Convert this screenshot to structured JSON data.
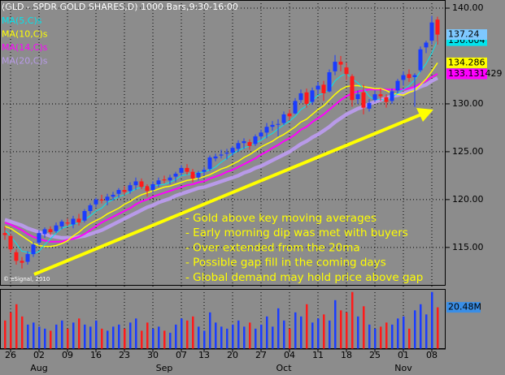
{
  "chart_data": {
    "type": "candlestick",
    "title": "(GLD - SPDR GOLD SHARES,D) 1000 Bars,9:30-16:00",
    "copyright": "© eSignal, 2010",
    "categories": [
      null,
      "26",
      null,
      null,
      null,
      null,
      "02",
      null,
      null,
      null,
      null,
      "09",
      null,
      null,
      null,
      null,
      "16",
      null,
      null,
      null,
      null,
      "23",
      null,
      null,
      null,
      null,
      "30",
      null,
      null,
      null,
      null,
      "07",
      null,
      null,
      null,
      "13",
      null,
      null,
      null,
      null,
      "20",
      null,
      null,
      null,
      null,
      "27",
      null,
      null,
      null,
      null,
      "04",
      null,
      null,
      null,
      null,
      "11",
      null,
      null,
      null,
      null,
      "18",
      null,
      null,
      null,
      null,
      "25",
      null,
      null,
      null,
      null,
      "01",
      null,
      null,
      null,
      null,
      "08",
      null
    ],
    "month_categories": [
      null,
      null,
      null,
      null,
      null,
      null,
      "Aug",
      null,
      null,
      null,
      null,
      null,
      null,
      null,
      null,
      null,
      null,
      null,
      null,
      null,
      null,
      null,
      null,
      null,
      null,
      null,
      null,
      null,
      "Sep",
      null,
      null,
      null,
      null,
      null,
      null,
      null,
      null,
      null,
      null,
      null,
      null,
      null,
      null,
      null,
      null,
      null,
      null,
      null,
      null,
      "Oct",
      null,
      null,
      null,
      null,
      null,
      null,
      null,
      null,
      null,
      null,
      null,
      null,
      null,
      null,
      null,
      null,
      null,
      null,
      null,
      null,
      "Nov",
      null,
      null,
      null,
      null,
      null,
      null
    ],
    "candles": {
      "up_color": "#1a3cff",
      "down_color": "#ff1a1a",
      "open": [
        116.5,
        116.2,
        114.5,
        113.6,
        113.5,
        114.3,
        115.5,
        116.4,
        116.9,
        116.7,
        117.2,
        117.6,
        117.4,
        118.0,
        117.8,
        118.8,
        119.5,
        120.0,
        119.9,
        120.3,
        120.6,
        121.0,
        120.9,
        121.5,
        121.9,
        121.4,
        121.0,
        121.6,
        122.1,
        122.0,
        122.4,
        122.8,
        123.3,
        122.9,
        122.3,
        122.9,
        123.2,
        124.3,
        124.6,
        124.8,
        124.9,
        125.3,
        125.9,
        126.0,
        125.8,
        126.6,
        127.0,
        127.6,
        127.9,
        128.0,
        129.0,
        129.0,
        130.4,
        131.2,
        130.2,
        131.5,
        132.0,
        131.3,
        133.4,
        134.4,
        133.8,
        132.9,
        130.5,
        131.2,
        129.5,
        130.4,
        131.0,
        130.7,
        130.3,
        131.4,
        132.5,
        133.1,
        132.8,
        133.5,
        135.9,
        136.6,
        138.8
      ],
      "high": [
        117.2,
        116.4,
        114.8,
        114.0,
        114.6,
        115.6,
        116.8,
        117.1,
        117.2,
        117.6,
        117.9,
        118.0,
        118.3,
        118.5,
        119.0,
        119.6,
        120.2,
        120.5,
        120.6,
        120.8,
        121.2,
        121.4,
        121.8,
        122.3,
        122.2,
        121.6,
        121.9,
        122.3,
        122.5,
        122.6,
        122.9,
        123.6,
        123.7,
        123.2,
        123.0,
        123.4,
        124.6,
        124.8,
        125.2,
        125.3,
        125.6,
        126.2,
        126.4,
        126.3,
        126.8,
        127.3,
        128.0,
        128.2,
        128.4,
        129.2,
        129.4,
        130.6,
        131.5,
        131.6,
        131.7,
        132.3,
        132.4,
        133.6,
        135.1,
        135.0,
        134.3,
        133.1,
        131.4,
        132.0,
        130.5,
        131.4,
        131.6,
        131.0,
        131.6,
        132.6,
        133.4,
        133.6,
        133.2,
        136.0,
        136.6,
        139.2,
        139.1
      ],
      "low": [
        115.8,
        114.5,
        113.2,
        112.8,
        113.2,
        114.0,
        115.2,
        116.0,
        116.3,
        116.5,
        116.9,
        117.2,
        117.0,
        117.3,
        117.6,
        118.5,
        119.2,
        119.6,
        119.4,
        119.9,
        120.2,
        120.5,
        120.6,
        121.0,
        121.1,
        120.3,
        120.7,
        121.3,
        121.7,
        121.6,
        121.8,
        122.5,
        122.6,
        121.8,
        122.0,
        122.5,
        123.0,
        124.0,
        124.3,
        124.2,
        124.6,
        125.0,
        125.3,
        125.2,
        125.6,
        126.3,
        126.4,
        127.2,
        126.6,
        127.8,
        128.3,
        128.9,
        130.1,
        129.6,
        129.9,
        131.0,
        130.3,
        131.2,
        133.0,
        133.4,
        132.5,
        129.7,
        130.0,
        128.9,
        129.2,
        130.2,
        130.3,
        129.6,
        130.0,
        131.1,
        131.9,
        132.3,
        129.7,
        133.3,
        135.3,
        136.2,
        136.2
      ],
      "close": [
        116.3,
        114.8,
        113.6,
        113.4,
        114.3,
        115.3,
        116.5,
        116.9,
        116.6,
        117.3,
        117.7,
        117.5,
        118.0,
        117.6,
        118.8,
        119.4,
        120.0,
        119.9,
        120.3,
        120.5,
        121.0,
        120.8,
        121.5,
        121.9,
        121.3,
        120.9,
        121.6,
        122.0,
        122.0,
        122.3,
        122.7,
        123.3,
        122.9,
        122.2,
        122.8,
        123.1,
        124.4,
        124.5,
        124.7,
        124.9,
        125.4,
        125.9,
        126.1,
        125.6,
        126.6,
        127.0,
        127.6,
        127.8,
        127.9,
        128.9,
        128.7,
        130.3,
        131.1,
        130.0,
        131.4,
        131.9,
        131.1,
        133.3,
        134.4,
        134.1,
        133.1,
        130.4,
        131.0,
        129.6,
        130.1,
        131.0,
        130.8,
        130.2,
        131.3,
        132.4,
        133.0,
        132.7,
        133.0,
        135.7,
        136.4,
        138.5,
        137.24
      ],
      "tag_color": "#7ec8ff"
    },
    "series": [
      {
        "name": "MA(5,C)s",
        "color": "#00e5ee",
        "width": 1,
        "tag": true,
        "values": [
          116.8,
          116.2,
          115.4,
          114.6,
          114.5,
          114.3,
          114.6,
          115.3,
          115.9,
          116.5,
          117.0,
          117.2,
          117.4,
          117.6,
          117.9,
          118.3,
          118.8,
          119.1,
          119.7,
          120.0,
          120.3,
          120.5,
          120.8,
          121.1,
          121.3,
          121.3,
          121.4,
          121.5,
          121.6,
          121.8,
          122.1,
          122.5,
          122.6,
          122.7,
          122.8,
          122.9,
          123.1,
          123.4,
          123.9,
          124.3,
          124.8,
          125.1,
          125.4,
          125.6,
          125.9,
          126.2,
          126.6,
          126.9,
          127.4,
          127.8,
          128.2,
          128.7,
          129.4,
          129.8,
          130.3,
          130.9,
          131.1,
          131.5,
          132.4,
          132.9,
          133.2,
          132.6,
          132.2,
          131.6,
          130.8,
          130.4,
          130.5,
          130.3,
          130.7,
          131.1,
          131.5,
          131.9,
          132.5,
          133.4,
          134.2,
          135.3,
          136.604
        ]
      },
      {
        "name": "MA(10,C)s",
        "color": "#ffff00",
        "width": 1.5,
        "tag": true,
        "values": [
          117.2,
          117.0,
          116.6,
          116.2,
          115.8,
          115.4,
          115.2,
          115.1,
          115.1,
          115.2,
          115.4,
          115.7,
          116.2,
          116.6,
          117.1,
          117.5,
          117.8,
          118.1,
          118.5,
          118.8,
          119.1,
          119.5,
          119.8,
          120.2,
          120.5,
          120.7,
          120.9,
          121.1,
          121.3,
          121.4,
          121.6,
          121.8,
          122.0,
          122.1,
          122.2,
          122.4,
          122.6,
          122.9,
          123.2,
          123.4,
          123.7,
          124.0,
          124.4,
          124.7,
          125.1,
          125.5,
          125.8,
          126.1,
          126.5,
          126.8,
          127.2,
          127.6,
          128.1,
          128.4,
          128.9,
          129.4,
          129.8,
          130.4,
          131.0,
          131.5,
          131.8,
          131.9,
          131.9,
          131.8,
          131.7,
          131.6,
          131.6,
          131.4,
          131.1,
          131.0,
          130.9,
          131.2,
          131.4,
          132.0,
          132.6,
          133.4,
          134.286
        ]
      },
      {
        "name": "MA(14,C)s",
        "color": "#ff00ff",
        "width": 2,
        "tag": true,
        "values": [
          117.6,
          117.4,
          117.1,
          116.8,
          116.4,
          116.1,
          115.9,
          115.7,
          115.6,
          115.6,
          115.6,
          115.8,
          115.9,
          116.1,
          116.4,
          116.8,
          117.2,
          117.6,
          117.9,
          118.2,
          118.5,
          118.8,
          119.1,
          119.5,
          119.8,
          120.0,
          120.3,
          120.5,
          120.7,
          120.9,
          121.1,
          121.3,
          121.5,
          121.6,
          121.8,
          121.9,
          122.2,
          122.4,
          122.6,
          122.9,
          123.1,
          123.4,
          123.7,
          124.0,
          124.3,
          124.7,
          125.0,
          125.4,
          125.7,
          126.1,
          126.4,
          126.8,
          127.3,
          127.6,
          128.1,
          128.5,
          128.9,
          129.4,
          129.9,
          130.4,
          130.8,
          131.1,
          131.3,
          131.4,
          131.5,
          131.5,
          131.5,
          131.5,
          131.5,
          131.5,
          131.5,
          131.6,
          131.8,
          132.1,
          132.4,
          132.8,
          133.131429
        ]
      },
      {
        "name": "MA(20,C)s",
        "color": "#b89ae8",
        "width": 4.5,
        "tag": false,
        "values": [
          117.9,
          117.7,
          117.5,
          117.3,
          117.0,
          116.8,
          116.6,
          116.4,
          116.2,
          116.1,
          116.0,
          116.0,
          116.0,
          116.1,
          116.2,
          116.4,
          116.6,
          116.8,
          117.1,
          117.4,
          117.7,
          118.0,
          118.3,
          118.6,
          118.9,
          119.2,
          119.4,
          119.7,
          119.9,
          120.1,
          120.4,
          120.6,
          120.8,
          121.0,
          121.2,
          121.3,
          121.5,
          121.7,
          121.9,
          122.1,
          122.3,
          122.5,
          122.8,
          123.0,
          123.3,
          123.5,
          123.8,
          124.1,
          124.4,
          124.7,
          125.0,
          125.4,
          125.8,
          126.1,
          126.5,
          126.8,
          127.2,
          127.6,
          128.1,
          128.5,
          128.9,
          129.2,
          129.5,
          129.7,
          130.0,
          130.2,
          130.4,
          130.6,
          130.8,
          130.9,
          131.1,
          131.3,
          131.5,
          131.8,
          132.0,
          132.4,
          132.7
        ]
      }
    ],
    "ylim": [
      111,
      140.85
    ],
    "yticks": [
      {
        "value": 115,
        "label": "115.00"
      },
      {
        "value": 120,
        "label": "120.00"
      },
      {
        "value": 125,
        "label": "125.00"
      },
      {
        "value": 130,
        "label": "130.00"
      },
      {
        "value": 140,
        "label": "140.00"
      }
    ],
    "grid": true,
    "volume": {
      "ylim": [
        0,
        29.5
      ],
      "tag_color": "#3a8ee6",
      "values": [
        14,
        18,
        22,
        16,
        12,
        13,
        11,
        10,
        9,
        12,
        14,
        10,
        13,
        15,
        12,
        11,
        14,
        10,
        9,
        11,
        12,
        10,
        13,
        15,
        9,
        13,
        10,
        11,
        9,
        8,
        12,
        15,
        14,
        16,
        11,
        9,
        18,
        13,
        11,
        10,
        12,
        14,
        11,
        13,
        10,
        12,
        16,
        11,
        20,
        14,
        10,
        18,
        16,
        22,
        13,
        15,
        17,
        14,
        24,
        19,
        18,
        28,
        16,
        21,
        12,
        10,
        11,
        13,
        12,
        15,
        16,
        10,
        19,
        22,
        17,
        28,
        20.48
      ],
      "value_labels": [
        null,
        null,
        null,
        null,
        null,
        null,
        null,
        null,
        null,
        null,
        null,
        null,
        null,
        null,
        null,
        null,
        null,
        null,
        null,
        null,
        null,
        null,
        null,
        null,
        null,
        null,
        null,
        null,
        null,
        null,
        null,
        null,
        null,
        null,
        null,
        null,
        null,
        null,
        null,
        null,
        null,
        null,
        null,
        null,
        null,
        null,
        null,
        null,
        null,
        null,
        null,
        null,
        null,
        null,
        null,
        null,
        null,
        null,
        null,
        null,
        null,
        null,
        null,
        null,
        null,
        null,
        null,
        null,
        null,
        null,
        null,
        null,
        null,
        null,
        null,
        null,
        "20.48M"
      ]
    },
    "annotations": [
      "- Gold above key moving averages",
      "- Early morning dip was met with buyers",
      "- Over extended from the 20ma",
      "- Possible gap fill in the coming days",
      "- Global demand may hold price above gap"
    ],
    "annotation_color": "#ffff00"
  }
}
